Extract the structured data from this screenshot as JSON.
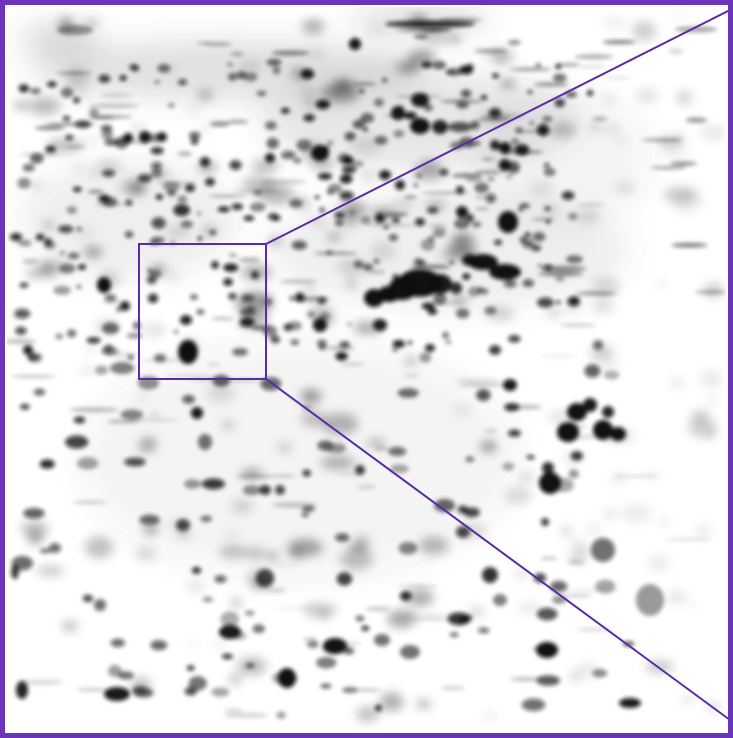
{
  "image": {
    "subject": "2d-gel-electrophoresis",
    "frame_color": "#6a35b8",
    "spot_color": "#0b0b0b",
    "background_color": "#ffffff",
    "zoom_indicator": {
      "color": "#5b2aa6",
      "kind": "magnification-callout"
    }
  }
}
